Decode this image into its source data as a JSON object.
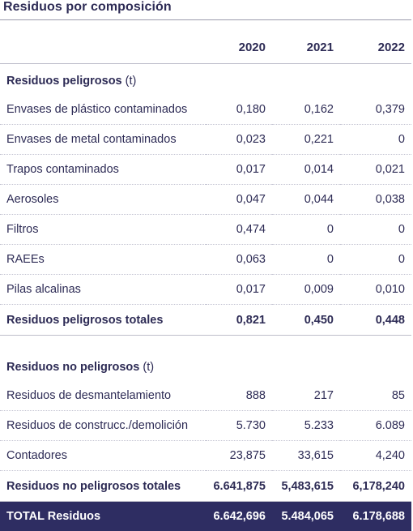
{
  "title": "Residuos por composición",
  "columns": [
    "2020",
    "2021",
    "2022"
  ],
  "hazardous": {
    "label": "Residuos peligrosos",
    "unit": "(t)",
    "rows": [
      {
        "name": "Envases de plástico contaminados",
        "values": [
          "0,180",
          "0,162",
          "0,379"
        ]
      },
      {
        "name": "Envases de metal contaminados",
        "values": [
          "0,023",
          "0,221",
          "0"
        ]
      },
      {
        "name": "Trapos contaminados",
        "values": [
          "0,017",
          "0,014",
          "0,021"
        ]
      },
      {
        "name": "Aerosoles",
        "values": [
          "0,047",
          "0,044",
          "0,038"
        ]
      },
      {
        "name": "Filtros",
        "values": [
          "0,474",
          "0",
          "0"
        ]
      },
      {
        "name": "RAEEs",
        "values": [
          "0,063",
          "0",
          "0"
        ]
      },
      {
        "name": "Pilas alcalinas",
        "values": [
          "0,017",
          "0,009",
          "0,010"
        ]
      }
    ],
    "total": {
      "name": "Residuos peligrosos totales",
      "values": [
        "0,821",
        "0,450",
        "0,448"
      ]
    }
  },
  "non_hazardous": {
    "label": "Residuos no peligrosos",
    "unit": "(t)",
    "rows": [
      {
        "name": "Residuos de desmantelamiento",
        "values": [
          "888",
          "217",
          "85"
        ]
      },
      {
        "name": "Residuos de construcc./demolición",
        "values": [
          "5.730",
          "5.233",
          "6.089"
        ]
      },
      {
        "name": "Contadores",
        "values": [
          "23,875",
          "33,615",
          "4,240"
        ]
      }
    ],
    "total": {
      "name": "Residuos no peligrosos totales",
      "values": [
        "6.641,875",
        "5,483,615",
        "6,178,240"
      ]
    }
  },
  "grand_total": {
    "name": "TOTAL Residuos",
    "values": [
      "6.642,696",
      "5.484,065",
      "6.178,688"
    ]
  },
  "colors": {
    "navy": "#2e2d62",
    "text": "#2d2b55",
    "rule": "#bdbdca"
  }
}
